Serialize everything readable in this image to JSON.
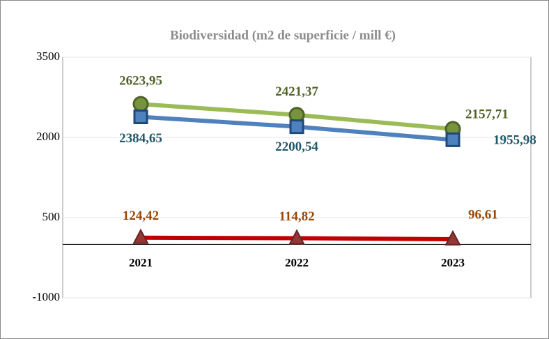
{
  "chart_data": {
    "type": "line",
    "title": "Biodiversidad (m2 de superficie / mill €)",
    "categories": [
      "2021",
      "2022",
      "2023"
    ],
    "series": [
      {
        "color": "#9bbb59",
        "marker": "circle",
        "values": [
          2623.95,
          2421.37,
          2157.71
        ],
        "value_labels": [
          "2623,95",
          "2421,37",
          "2157,71"
        ]
      },
      {
        "color": "#4f81bd",
        "marker": "square",
        "values": [
          2384.65,
          2200.54,
          1955.98
        ],
        "value_labels": [
          "2384,65",
          "2200,54",
          "1955,98"
        ]
      },
      {
        "color": "#c00000",
        "marker": "triangle",
        "values": [
          124.42,
          114.82,
          96.61
        ],
        "value_labels": [
          "124,42",
          "114,82",
          "96,61"
        ]
      }
    ],
    "ylim": [
      -1000,
      3500
    ],
    "yticks": [
      -1000,
      500,
      2000,
      3500
    ],
    "grid": true
  }
}
